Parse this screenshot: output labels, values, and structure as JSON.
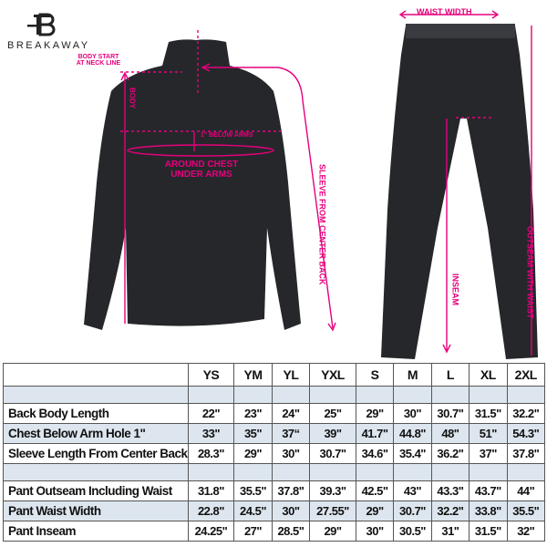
{
  "brand": {
    "name": "BREAKAWAY",
    "logo_letter": "B"
  },
  "annotations": {
    "body_start": "BODY START AT NECK LINE",
    "body": "BODY",
    "below_arms": "1\" BELOW ARMS",
    "chest": "AROUND CHEST UNDER ARMS",
    "sleeve": "SLEEVE FROM CENTER BACK",
    "waist_width": "WAIST WIDTH",
    "inseam": "INSEAM",
    "outseam": "OUTSEAM WITH WAIST"
  },
  "colors": {
    "accent": "#e6007e",
    "garment": "#26272b",
    "table_shade": "#dde6ee"
  },
  "table": {
    "sizes": [
      "YS",
      "YM",
      "YL",
      "YXL",
      "S",
      "M",
      "L",
      "XL",
      "2XL"
    ],
    "rows": [
      {
        "type": "blank"
      },
      {
        "label": "Back Body Length",
        "values": [
          "22\"",
          "23\"",
          "24\"",
          "25\"",
          "29\"",
          "30\"",
          "30.7\"",
          "31.5\"",
          "32.2\""
        ]
      },
      {
        "label": "Chest Below Arm Hole 1\"",
        "values": [
          "33\"",
          "35\"",
          "37“",
          "39\"",
          "41.7\"",
          "44.8\"",
          "48\"",
          "51\"",
          "54.3\""
        ]
      },
      {
        "label": "Sleeve Length From Center Back",
        "values": [
          "28.3\"",
          "29\"",
          "30\"",
          "30.7\"",
          "34.6\"",
          "35.4\"",
          "36.2\"",
          "37\"",
          "37.8\""
        ]
      },
      {
        "type": "blank"
      },
      {
        "label": "Pant Outseam Including Waist",
        "values": [
          "31.8\"",
          "35.5\"",
          "37.8\"",
          "39.3\"",
          "42.5\"",
          "43\"",
          "43.3\"",
          "43.7\"",
          "44\""
        ]
      },
      {
        "label": "Pant Waist Width",
        "values": [
          "22.8\"",
          "24.5\"",
          "30\"",
          "27.55\"",
          "29\"",
          "30.7\"",
          "32.2\"",
          "33.8\"",
          "35.5\""
        ]
      },
      {
        "label": "Pant Inseam",
        "values": [
          "24.25\"",
          "27\"",
          "28.5\"",
          "29\"",
          "30\"",
          "30.5\"",
          "31\"",
          "31.5\"",
          "32\""
        ]
      }
    ]
  }
}
